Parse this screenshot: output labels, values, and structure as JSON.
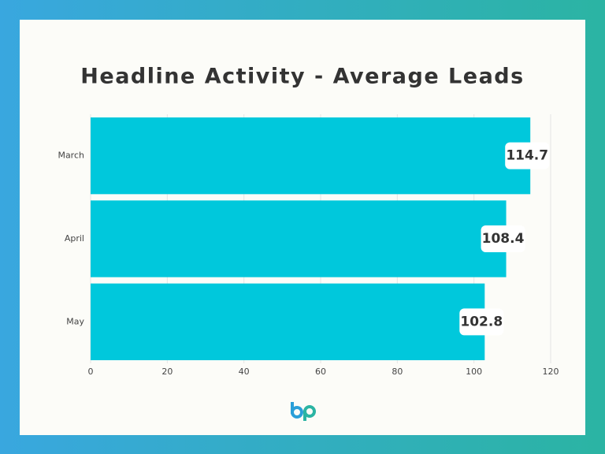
{
  "chart_data": {
    "type": "hbar",
    "title": "Headline Activity - Average Leads",
    "categories": [
      "March",
      "April",
      "May"
    ],
    "values": [
      114.7,
      108.4,
      102.8
    ],
    "color": "#00c8dc",
    "xlim": [
      0,
      120
    ],
    "xticks": [
      0,
      20,
      40,
      60,
      80,
      100,
      120
    ],
    "grid": true
  }
}
